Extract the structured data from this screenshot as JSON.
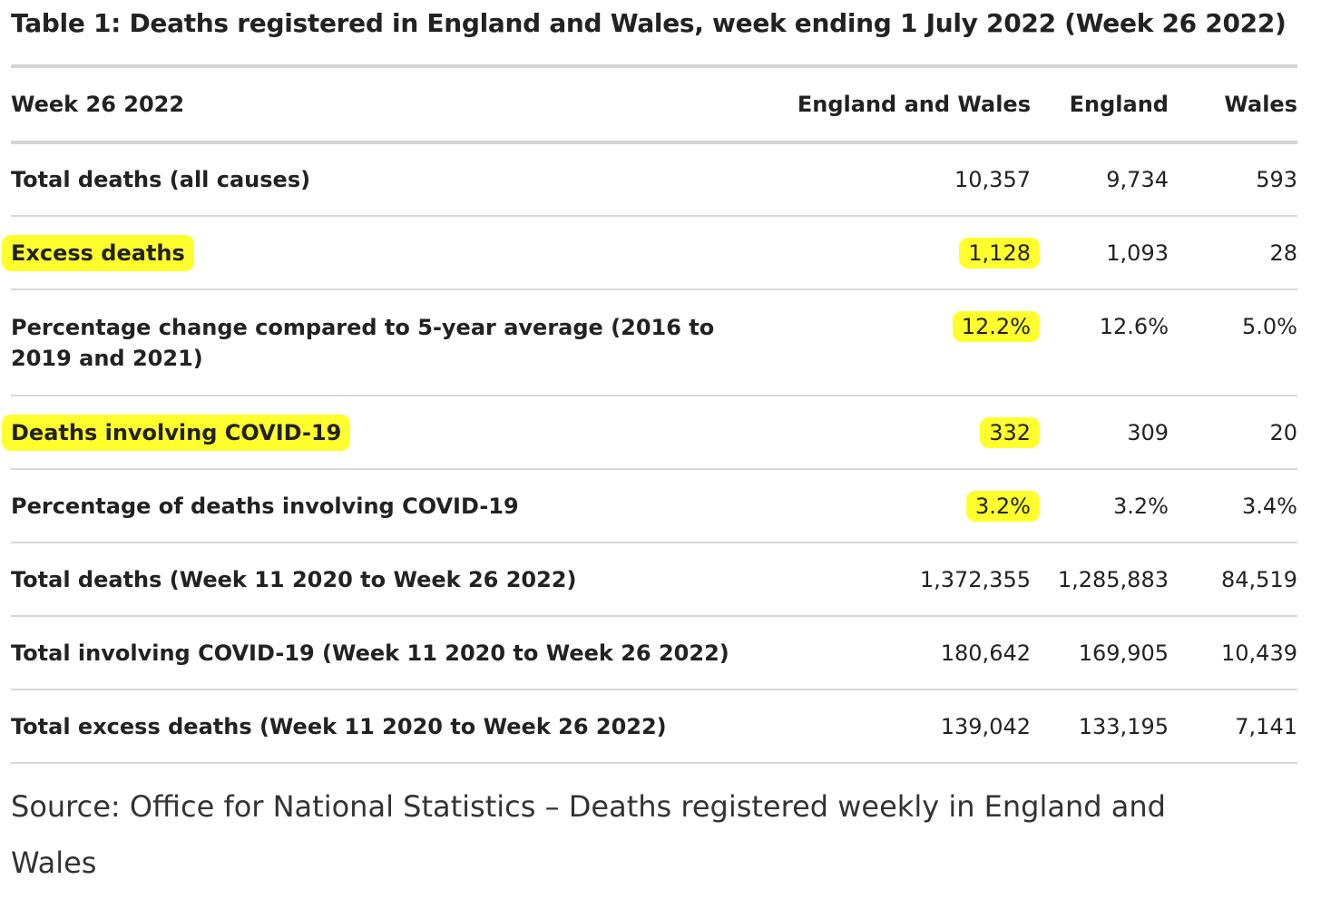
{
  "title": "Table 1: Deaths registered in England and Wales, week ending 1 July 2022 (Week 26 2022)",
  "table": {
    "headers": [
      "Week 26 2022",
      "England and Wales",
      "England",
      "Wales"
    ],
    "rows": [
      {
        "label": "Total deaths (all causes)",
        "values": [
          "10,357",
          "9,734",
          "593"
        ],
        "highlight": false
      },
      {
        "label": "Excess deaths",
        "values": [
          "1,128",
          "1,093",
          "28"
        ],
        "highlight": true
      },
      {
        "label": "Percentage change compared to 5-year average (2016 to 2019 and 2021)",
        "values": [
          "12.2%",
          "12.6%",
          "5.0%"
        ],
        "highlight": true
      },
      {
        "label": "Deaths involving COVID-19",
        "values": [
          "332",
          "309",
          "20"
        ],
        "highlight": true
      },
      {
        "label": "Percentage of deaths involving COVID-19",
        "values": [
          "3.2%",
          "3.2%",
          "3.4%"
        ],
        "highlight": true
      },
      {
        "label": "Total deaths (Week 11 2020 to Week 26 2022)",
        "values": [
          "1,372,355",
          "1,285,883",
          "84,519"
        ],
        "highlight": false
      },
      {
        "label": "Total involving COVID-19 (Week 11 2020 to Week 26 2022)",
        "values": [
          "180,642",
          "169,905",
          "10,439"
        ],
        "highlight": false
      },
      {
        "label": "Total excess deaths (Week 11 2020 to Week 26 2022)",
        "values": [
          "139,042",
          "133,195",
          "7,141"
        ],
        "highlight": false
      }
    ]
  },
  "source": "Source: Office for National Statistics – Deaths registered weekly in England and Wales",
  "colors": {
    "highlight": "#ffff2e",
    "rule": "#d4d4d4",
    "text": "#222222"
  }
}
